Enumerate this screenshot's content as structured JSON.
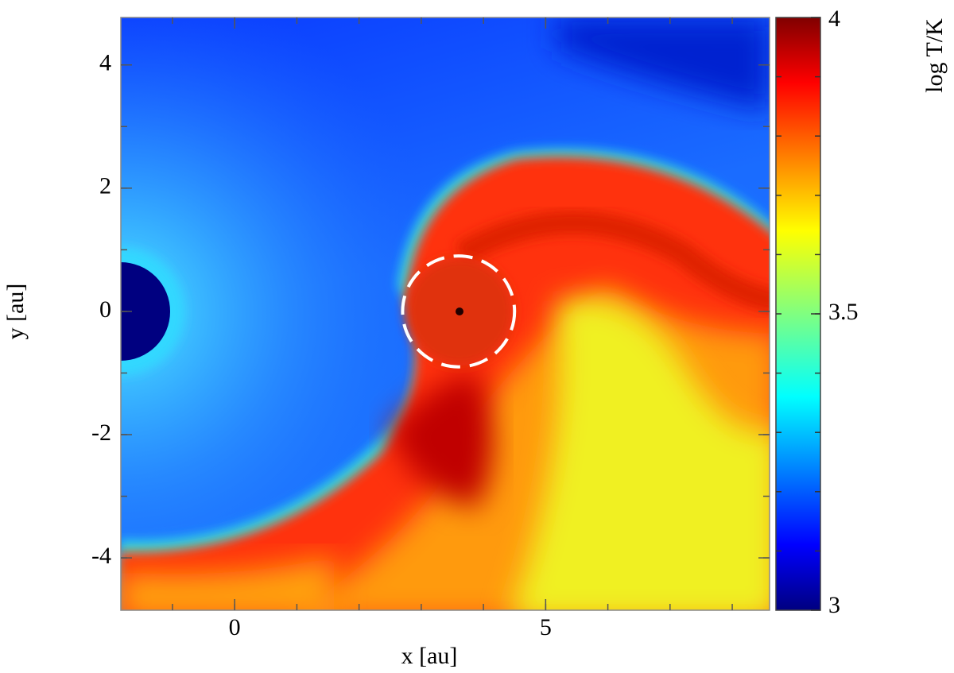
{
  "chart_data": {
    "type": "heatmap",
    "colormap": "jet",
    "xlabel": "x [au]",
    "ylabel": "y [au]",
    "colorbar_label": "log T/K",
    "xlim": [
      -1.83,
      8.6
    ],
    "ylim": [
      -4.85,
      4.77
    ],
    "xticks": [
      0,
      5
    ],
    "yticks": [
      -4,
      -2,
      0,
      2,
      4
    ],
    "xminor_ticks": [
      -1,
      0,
      1,
      2,
      3,
      4,
      5,
      6,
      7,
      8
    ],
    "yminor_ticks": [
      -4,
      -3,
      -2,
      -1,
      0,
      1,
      2,
      3,
      4
    ],
    "zlim": [
      3,
      4
    ],
    "zticks": [
      3,
      3.5,
      4
    ],
    "zminor_ticks": [
      3.1,
      3.2,
      3.3,
      3.4,
      3.5,
      3.6,
      3.7,
      3.8,
      3.9
    ],
    "circle": {
      "x": 3.6,
      "y": 0,
      "r": 0.9
    }
  }
}
